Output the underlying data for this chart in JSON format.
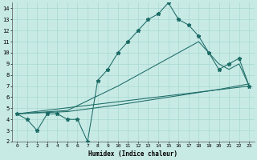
{
  "xlabel": "Humidex (Indice chaleur)",
  "xlim": [
    -0.5,
    23.5
  ],
  "ylim": [
    2,
    14.5
  ],
  "xticks": [
    0,
    1,
    2,
    3,
    4,
    5,
    6,
    7,
    8,
    9,
    10,
    11,
    12,
    13,
    14,
    15,
    16,
    17,
    18,
    19,
    20,
    21,
    22,
    23
  ],
  "yticks": [
    2,
    3,
    4,
    5,
    6,
    7,
    8,
    9,
    10,
    11,
    12,
    13,
    14
  ],
  "bg_color": "#c8eae5",
  "line_color": "#1c6b66",
  "grid_color": "#a8d8d2",
  "lines": [
    {
      "x": [
        0,
        1,
        2,
        3,
        4,
        5,
        6,
        7,
        8,
        9,
        10,
        11,
        12,
        13,
        14,
        15,
        16,
        17,
        18,
        19,
        20,
        21,
        22,
        23
      ],
      "y": [
        4.5,
        4.0,
        3.0,
        4.5,
        4.5,
        4.0,
        4.0,
        2.0,
        7.5,
        8.5,
        10.0,
        11.0,
        12.0,
        13.0,
        13.5,
        14.5,
        13.0,
        12.5,
        11.5,
        10.0,
        8.5,
        9.0,
        9.5,
        7.0
      ],
      "marker": "*",
      "markersize": 3.5
    },
    {
      "x": [
        0,
        5,
        10,
        15,
        16,
        17,
        18,
        19,
        20,
        21,
        22,
        23
      ],
      "y": [
        4.5,
        4.8,
        7.0,
        9.5,
        10.0,
        10.5,
        11.0,
        10.0,
        9.0,
        8.5,
        9.0,
        7.0
      ],
      "marker": null
    },
    {
      "x": [
        0,
        23
      ],
      "y": [
        4.5,
        7.0
      ],
      "marker": null
    },
    {
      "x": [
        0,
        5,
        10,
        15,
        20,
        23
      ],
      "y": [
        4.5,
        4.7,
        5.3,
        6.0,
        6.7,
        7.2
      ],
      "marker": null
    }
  ]
}
